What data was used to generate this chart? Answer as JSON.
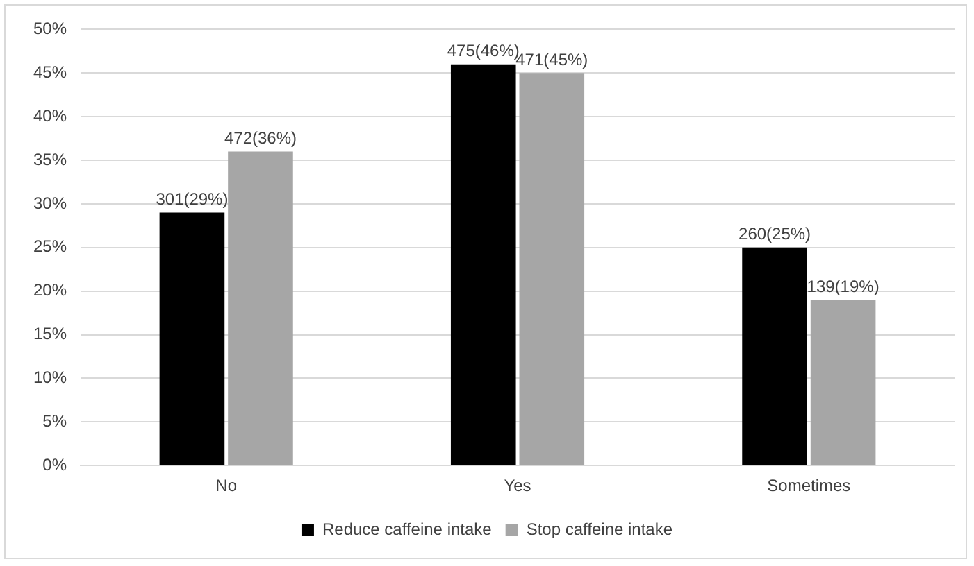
{
  "chart_data": {
    "type": "bar",
    "categories": [
      "No",
      "Yes",
      "Sometimes"
    ],
    "series": [
      {
        "name": "Reduce caffeine intake",
        "color": "#000000",
        "values": [
          29,
          46,
          25
        ],
        "value_labels": [
          "301(29%)",
          "475(46%)",
          "260(25%)"
        ]
      },
      {
        "name": "Stop caffeine intake",
        "color": "#a6a6a6",
        "values": [
          36,
          45,
          19
        ],
        "value_labels": [
          "472(36%)",
          "471(45%)",
          "139(19%)"
        ]
      }
    ],
    "ylim": [
      0,
      50
    ],
    "yticks": [
      {
        "value": 0,
        "label": "0%"
      },
      {
        "value": 5,
        "label": "5%"
      },
      {
        "value": 10,
        "label": "10%"
      },
      {
        "value": 15,
        "label": "15%"
      },
      {
        "value": 20,
        "label": "20%"
      },
      {
        "value": 25,
        "label": "25%"
      },
      {
        "value": 30,
        "label": "30%"
      },
      {
        "value": 35,
        "label": "35%"
      },
      {
        "value": 40,
        "label": "40%"
      },
      {
        "value": 45,
        "label": "45%"
      },
      {
        "value": 50,
        "label": "50%"
      }
    ],
    "grid": "y",
    "legend": "bottom"
  }
}
